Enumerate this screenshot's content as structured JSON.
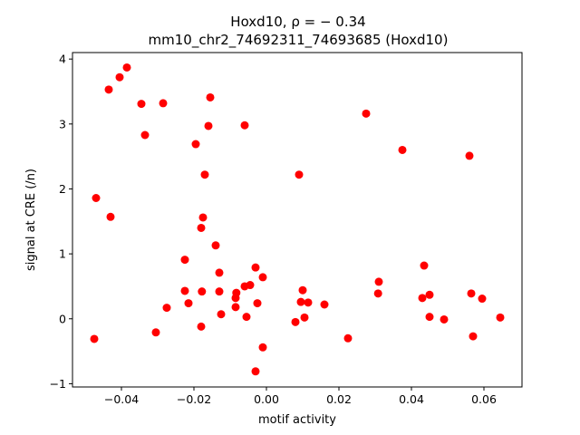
{
  "chart_data": {
    "type": "scatter",
    "title_line1": "Hoxd10, ρ = − 0.34",
    "title_line2": "mm10_chr2_74692311_74693685 (Hoxd10)",
    "xlabel": "motif activity",
    "ylabel": "signal at CRE (/n)",
    "xlim": [
      -0.0535,
      0.0705
    ],
    "ylim": [
      -1.05,
      4.1
    ],
    "xticks": [
      -0.04,
      -0.02,
      0.0,
      0.02,
      0.04,
      0.06
    ],
    "xtick_labels": [
      "−0.04",
      "−0.02",
      "0.00",
      "0.02",
      "0.04",
      "0.06"
    ],
    "yticks": [
      -1,
      0,
      1,
      2,
      3,
      4
    ],
    "ytick_labels": [
      "−1",
      "0",
      "1",
      "2",
      "3",
      "4"
    ],
    "marker_color": "#ff0000",
    "grid": false,
    "points": [
      [
        -0.0385,
        3.87
      ],
      [
        -0.0405,
        3.72
      ],
      [
        -0.0435,
        3.53
      ],
      [
        -0.0345,
        3.31
      ],
      [
        -0.0285,
        3.32
      ],
      [
        -0.0335,
        2.83
      ],
      [
        -0.0155,
        3.41
      ],
      [
        -0.016,
        2.97
      ],
      [
        -0.006,
        2.98
      ],
      [
        -0.0195,
        2.69
      ],
      [
        -0.017,
        2.22
      ],
      [
        -0.047,
        1.86
      ],
      [
        -0.043,
        1.57
      ],
      [
        -0.0175,
        1.56
      ],
      [
        -0.018,
        1.4
      ],
      [
        -0.014,
        1.13
      ],
      [
        -0.0225,
        0.91
      ],
      [
        -0.013,
        0.71
      ],
      [
        -0.003,
        0.79
      ],
      [
        -0.001,
        0.64
      ],
      [
        -0.0045,
        0.52
      ],
      [
        -0.006,
        0.5
      ],
      [
        -0.0225,
        0.43
      ],
      [
        -0.0178,
        0.42
      ],
      [
        -0.013,
        0.42
      ],
      [
        -0.0083,
        0.4
      ],
      [
        -0.0085,
        0.32
      ],
      [
        -0.0215,
        0.24
      ],
      [
        -0.0025,
        0.24
      ],
      [
        -0.0085,
        0.18
      ],
      [
        -0.0275,
        0.17
      ],
      [
        -0.0125,
        0.07
      ],
      [
        -0.0055,
        0.03
      ],
      [
        -0.018,
        -0.12
      ],
      [
        -0.0305,
        -0.21
      ],
      [
        -0.0475,
        -0.31
      ],
      [
        -0.001,
        -0.44
      ],
      [
        -0.003,
        -0.81
      ],
      [
        0.009,
        2.22
      ],
      [
        0.01,
        0.44
      ],
      [
        0.0095,
        0.26
      ],
      [
        0.0115,
        0.25
      ],
      [
        0.016,
        0.22
      ],
      [
        0.0105,
        0.02
      ],
      [
        0.008,
        -0.05
      ],
      [
        0.0225,
        -0.3
      ],
      [
        0.0275,
        3.16
      ],
      [
        0.0375,
        2.6
      ],
      [
        0.031,
        0.57
      ],
      [
        0.0308,
        0.39
      ],
      [
        0.0435,
        0.82
      ],
      [
        0.043,
        0.32
      ],
      [
        0.045,
        0.37
      ],
      [
        0.045,
        0.03
      ],
      [
        0.049,
        -0.01
      ],
      [
        0.056,
        2.51
      ],
      [
        0.0565,
        0.39
      ],
      [
        0.0595,
        0.31
      ],
      [
        0.057,
        -0.27
      ],
      [
        0.0645,
        0.02
      ]
    ]
  }
}
